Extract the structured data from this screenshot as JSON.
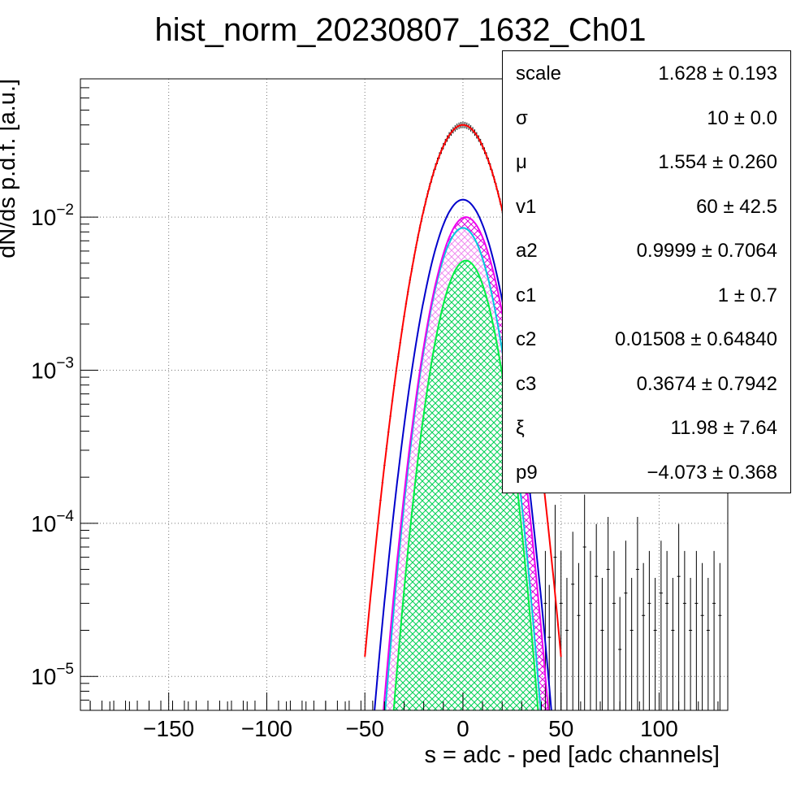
{
  "chart_data": {
    "type": "histogram",
    "title": "hist_norm_20230807_1632_Ch01",
    "xlabel": "s = adc - ped [adc channels]",
    "ylabel": "dN/ds p.d.f. [a.u.]",
    "xlim": [
      -195,
      135
    ],
    "ylim": [
      6e-06,
      0.08
    ],
    "yscale": "log",
    "grid": true,
    "x_ticks": [
      -150,
      -100,
      -50,
      0,
      50,
      100
    ],
    "y_ticks": [
      {
        "value": 0.01,
        "base": "10",
        "exp": "−2"
      },
      {
        "value": 0.001,
        "base": "10",
        "exp": "−3"
      },
      {
        "value": 0.0001,
        "base": "10",
        "exp": "−4"
      },
      {
        "value": 1e-05,
        "base": "10",
        "exp": "−5"
      }
    ],
    "series": [
      {
        "role": "total-fit",
        "color": "#ff0000",
        "curve": "gauss",
        "peak": 0.04,
        "mu": 0,
        "sigma": 12.5
      },
      {
        "role": "component",
        "color": "#0000cc",
        "curve": "gauss",
        "peak": 0.013,
        "mu": 0,
        "sigma": 11.5
      },
      {
        "role": "component",
        "color": "#ee00ee",
        "curve": "gauss",
        "peak": 0.01,
        "mu": 1.5,
        "sigma": 10.9
      },
      {
        "role": "component",
        "color": "#00ccdd",
        "curve": "gauss",
        "peak": 0.0085,
        "mu": 0,
        "sigma": 10.4
      },
      {
        "role": "component",
        "color": "#00ee44",
        "curve": "gauss",
        "peak": 0.0052,
        "mu": 1.5,
        "sigma": 10.0
      }
    ],
    "histogram": {
      "color": "#000000",
      "core": {
        "peak": 0.04,
        "mu": 0,
        "sigma": 12.5,
        "x_range": [
          -42,
          40
        ]
      },
      "tail_points": [
        {
          "x": 42,
          "y": 3e-05
        },
        {
          "x": 44,
          "y": 1.8e-05
        },
        {
          "x": 47,
          "y": 6e-05
        },
        {
          "x": 50,
          "y": 3e-05
        },
        {
          "x": 53,
          "y": 2e-05
        },
        {
          "x": 56,
          "y": 4e-05
        },
        {
          "x": 59,
          "y": 2.5e-05
        },
        {
          "x": 62,
          "y": 7e-05
        },
        {
          "x": 65,
          "y": 3e-05
        },
        {
          "x": 68,
          "y": 4.5e-05
        },
        {
          "x": 71,
          "y": 2e-05
        },
        {
          "x": 74,
          "y": 5e-05
        },
        {
          "x": 77,
          "y": 3e-05
        },
        {
          "x": 80,
          "y": 1.5e-05
        },
        {
          "x": 83,
          "y": 3.5e-05
        },
        {
          "x": 86,
          "y": 2e-05
        },
        {
          "x": 89,
          "y": 5e-05
        },
        {
          "x": 92,
          "y": 2.5e-05
        },
        {
          "x": 95,
          "y": 3e-05
        },
        {
          "x": 98,
          "y": 2e-05
        },
        {
          "x": 101,
          "y": 3.5e-05
        },
        {
          "x": 104,
          "y": 3e-05
        },
        {
          "x": 107,
          "y": 2e-05
        },
        {
          "x": 110,
          "y": 4.5e-05
        },
        {
          "x": 113,
          "y": 3e-05
        },
        {
          "x": 116,
          "y": 2e-05
        },
        {
          "x": 119,
          "y": 3e-05
        },
        {
          "x": 122,
          "y": 2.5e-05
        },
        {
          "x": 125,
          "y": 2e-05
        },
        {
          "x": 128,
          "y": 3e-05
        },
        {
          "x": 131,
          "y": 2.5e-05
        }
      ]
    }
  },
  "stats": [
    {
      "name": "scale",
      "value": "1.628 ± 0.193"
    },
    {
      "name": "σ",
      "value": "10 ± 0.0"
    },
    {
      "name": "μ",
      "value": "1.554 ± 0.260"
    },
    {
      "name": "v1",
      "value": "60 ± 42.5"
    },
    {
      "name": "a2",
      "value": "0.9999 ± 0.7064"
    },
    {
      "name": "c1",
      "value": "1 ± 0.7"
    },
    {
      "name": "c2",
      "value": "0.01508 ± 0.64840"
    },
    {
      "name": "c3",
      "value": "0.3674 ± 0.7942"
    },
    {
      "name": "ξ",
      "value": "11.98 ± 7.64"
    },
    {
      "name": "p9",
      "value": "−4.073 ± 0.368"
    }
  ]
}
